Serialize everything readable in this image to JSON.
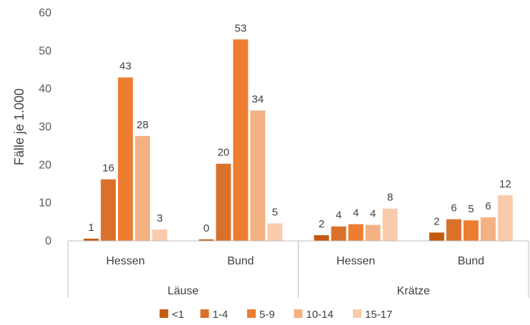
{
  "chart_data": {
    "type": "bar",
    "ylabel": "Fälle je 1.000",
    "ylim": [
      0,
      60
    ],
    "yticks": [
      0,
      10,
      20,
      30,
      40,
      50,
      60
    ],
    "grid": false,
    "legend_position": "bottom",
    "groups": [
      {
        "label": "Läuse",
        "categories": [
          "Hessen",
          "Bund"
        ]
      },
      {
        "label": "Krätze",
        "categories": [
          "Hessen",
          "Bund"
        ]
      }
    ],
    "categories": [
      "Hessen",
      "Bund",
      "Hessen",
      "Bund"
    ],
    "series": [
      {
        "name": "<1",
        "color": "#C55A11",
        "values": [
          0.6,
          0.4,
          1.5,
          2.2
        ],
        "labels": [
          "1",
          "0",
          "2",
          "2"
        ]
      },
      {
        "name": "1-4",
        "color": "#D9712B",
        "values": [
          16.2,
          20.3,
          3.8,
          5.7
        ],
        "labels": [
          "16",
          "20",
          "4",
          "6"
        ]
      },
      {
        "name": "5-9",
        "color": "#ED7D31",
        "values": [
          43,
          53,
          4.4,
          5.4
        ],
        "labels": [
          "43",
          "53",
          "4",
          "5"
        ]
      },
      {
        "name": "10-14",
        "color": "#F4B183",
        "values": [
          27.6,
          34.3,
          4.2,
          6.2
        ],
        "labels": [
          "28",
          "34",
          "4",
          "6"
        ]
      },
      {
        "name": "15-17",
        "color": "#F8CBAD",
        "values": [
          3,
          4.6,
          8.5,
          12
        ],
        "labels": [
          "3",
          "5",
          "8",
          "12"
        ]
      }
    ]
  }
}
